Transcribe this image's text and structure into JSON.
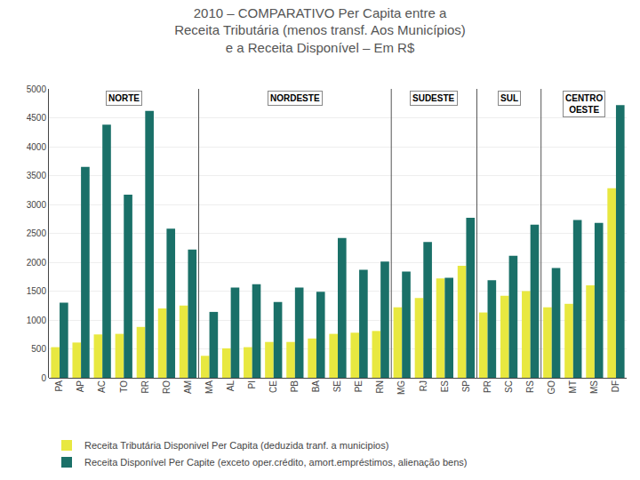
{
  "chart_data": {
    "type": "bar",
    "title": "2010 – COMPARATIVO Per Capita entre a\nReceita Tributária (menos transf. Aos Municípios)\ne a Receita Disponível – Em R$",
    "categories": [
      "PA",
      "AP",
      "AC",
      "TO",
      "RR",
      "RO",
      "AM",
      "MA",
      "AL",
      "PI",
      "CE",
      "PB",
      "BA",
      "SE",
      "PE",
      "RN",
      "MG",
      "RJ",
      "ES",
      "SP",
      "PR",
      "SC",
      "RS",
      "GO",
      "MT",
      "MS",
      "DF"
    ],
    "series": [
      {
        "name": "Receita Tributária Disponivel Per Capita (deduzida tranf. a municipios)",
        "color": "#e8e840",
        "values": [
          530,
          610,
          750,
          760,
          880,
          1200,
          1250,
          380,
          510,
          530,
          620,
          620,
          680,
          760,
          780,
          810,
          1220,
          1380,
          1720,
          1940,
          1130,
          1420,
          1500,
          1220,
          1280,
          1600,
          3280
        ]
      },
      {
        "name": "Receita Disponível Per Capite (exceto oper.crédito, amort.empréstimos, alienação bens)",
        "color": "#1a7068",
        "values": [
          1300,
          3650,
          4380,
          3170,
          4620,
          2580,
          2220,
          1140,
          1560,
          1620,
          1310,
          1560,
          1490,
          2420,
          1870,
          2010,
          1840,
          2350,
          1730,
          2770,
          1690,
          2110,
          2650,
          1900,
          2730,
          2680,
          4720
        ]
      }
    ],
    "annotations": [
      {
        "text": "NORTE",
        "categories": [
          "PA",
          "AP",
          "AC",
          "TO",
          "RR",
          "RO",
          "AM"
        ]
      },
      {
        "text": "NORDESTE",
        "categories": [
          "MA",
          "AL",
          "PI",
          "CE",
          "PB",
          "BA",
          "SE",
          "PE",
          "RN"
        ]
      },
      {
        "text": "SUDESTE",
        "categories": [
          "MG",
          "RJ",
          "ES",
          "SP"
        ]
      },
      {
        "text": "SUL",
        "categories": [
          "PR",
          "SC",
          "RS"
        ]
      },
      {
        "text": "CENTRO\nOESTE",
        "categories": [
          "GO",
          "MT",
          "MS",
          "DF"
        ]
      }
    ],
    "ylim": [
      0,
      5000
    ],
    "yticks": [
      0,
      500,
      1000,
      1500,
      2000,
      2500,
      3000,
      3500,
      4000,
      4500,
      5000
    ],
    "grid": true,
    "legend": "bottom"
  }
}
